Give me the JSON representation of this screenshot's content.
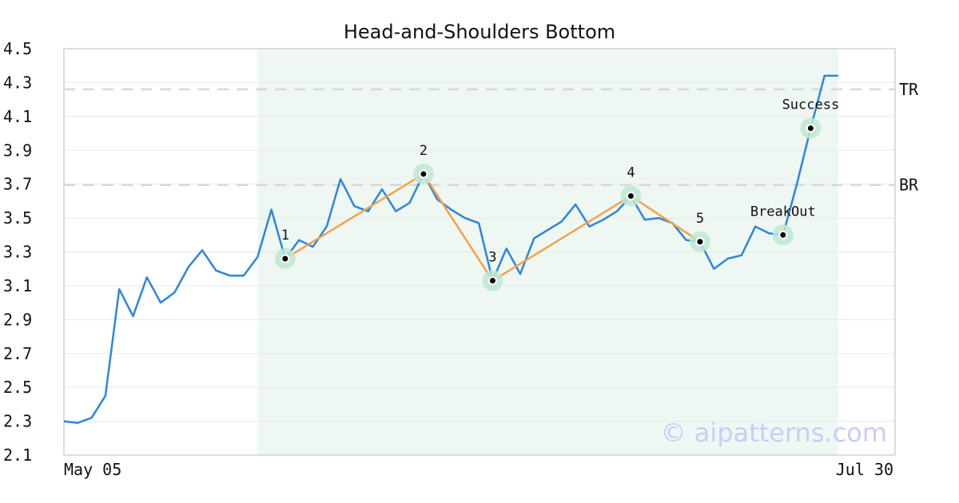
{
  "chart_data": {
    "type": "line",
    "title": "Head-and-Shoulders Bottom",
    "xlabel": "",
    "ylabel": "",
    "ylim": [
      2.1,
      4.5
    ],
    "y_ticks": [
      "2.1",
      "2.3",
      "2.5",
      "2.7",
      "2.9",
      "3.1",
      "3.3",
      "3.5",
      "3.7",
      "3.9",
      "4.1",
      "4.3",
      "4.5"
    ],
    "x_ticks": [
      "May 05",
      "Jul 30"
    ],
    "grid": true,
    "pattern_region": {
      "x_start": 14,
      "x_end": 56
    },
    "reference_lines": [
      {
        "label": "TR",
        "value": 4.26
      },
      {
        "label": "BR",
        "value": 3.695
      }
    ],
    "series": [
      {
        "values": [
          2.3,
          2.29,
          2.32,
          2.45,
          3.08,
          2.92,
          3.15,
          3.0,
          3.06,
          3.21,
          3.31,
          3.19,
          3.16,
          3.16,
          3.27,
          3.55,
          3.26,
          3.37,
          3.33,
          3.45,
          3.73,
          3.57,
          3.54,
          3.67,
          3.54,
          3.59,
          3.76,
          3.61,
          3.55,
          3.5,
          3.47,
          3.13,
          3.32,
          3.17,
          3.38,
          3.43,
          3.48,
          3.58,
          3.45,
          3.49,
          3.54,
          3.63,
          3.49,
          3.5,
          3.47,
          3.37,
          3.36,
          3.2,
          3.26,
          3.28,
          3.45,
          3.41,
          3.4,
          3.7,
          4.03,
          4.34,
          4.34
        ]
      }
    ],
    "pattern_points": [
      {
        "label": "1",
        "x": 16,
        "y": 3.26
      },
      {
        "label": "2",
        "x": 26,
        "y": 3.76
      },
      {
        "label": "3",
        "x": 31,
        "y": 3.13
      },
      {
        "label": "4",
        "x": 41,
        "y": 3.63
      },
      {
        "label": "5",
        "x": 46,
        "y": 3.36
      },
      {
        "label": "BreakOut",
        "x": 52,
        "y": 3.4
      },
      {
        "label": "Success",
        "x": 54,
        "y": 4.03
      }
    ],
    "colors": {
      "price": "#2e86de",
      "pattern": "#f5a049",
      "region": "#eef7f2",
      "marker_halo": "#bfe8d3",
      "grid": "#e8e8e8",
      "reference": "#d8d8d8",
      "frame": "#dddddd"
    }
  },
  "watermark": "© aipatterns.com"
}
